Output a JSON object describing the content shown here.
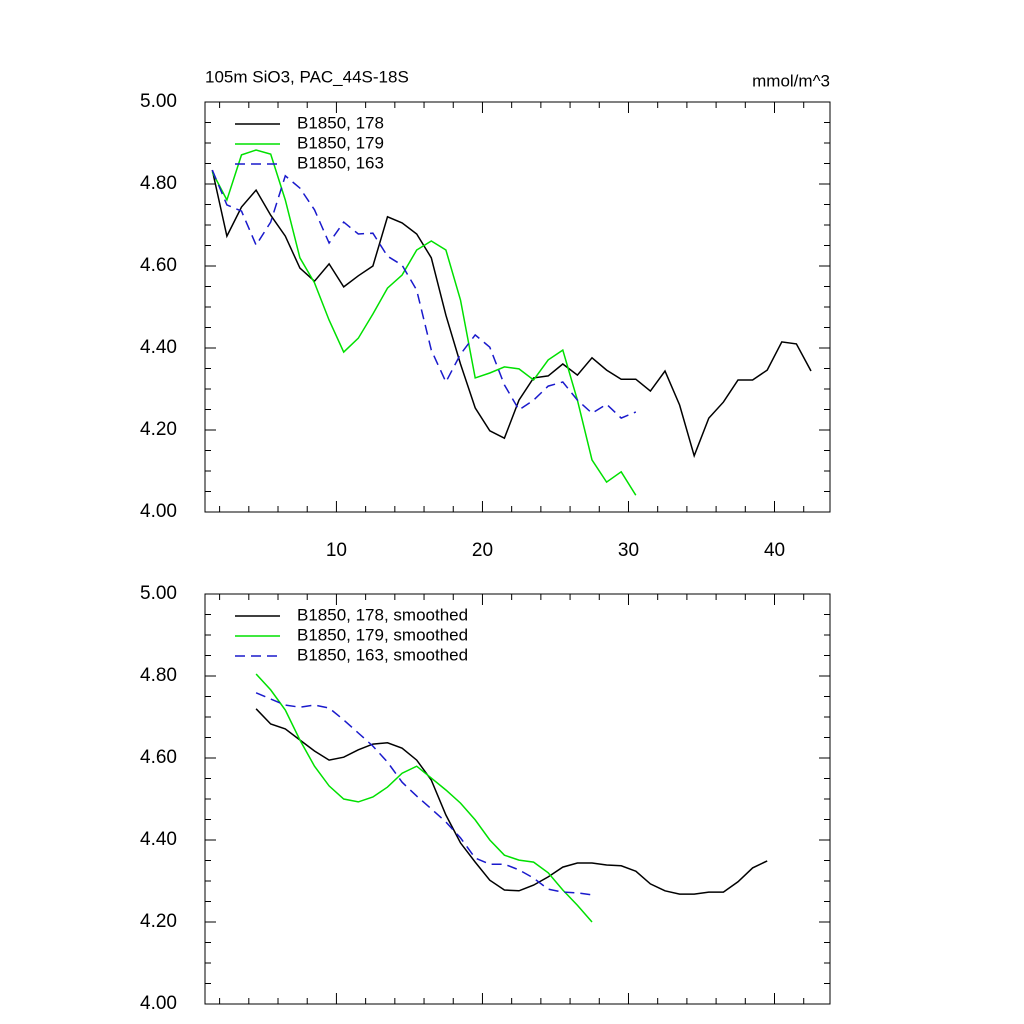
{
  "chart_data": [
    {
      "type": "line",
      "title": "105m SiO3, PAC_44S-18S",
      "units": "mmol/m^3",
      "x": [
        1.5,
        2.5,
        3.5,
        4.5,
        5.5,
        6.5,
        7.5,
        8.5,
        9.5,
        10.5,
        11.5,
        12.5,
        13.5,
        14.5,
        15.5,
        16.5,
        17.5,
        18.5,
        19.5,
        20.5,
        21.5,
        22.5,
        23.5,
        24.5,
        25.5,
        26.5,
        27.5,
        28.5,
        29.5,
        30.5,
        31.5,
        32.5,
        33.5,
        34.5,
        35.5,
        36.5,
        37.5,
        38.5,
        39.5,
        40.5,
        41.5,
        42.5
      ],
      "series": [
        {
          "name": "B1850, 178",
          "color": "#000000",
          "dash": false,
          "values": [
            4.834,
            4.673,
            4.744,
            4.785,
            4.724,
            4.673,
            4.595,
            4.563,
            4.605,
            4.549,
            4.576,
            4.6,
            4.72,
            4.705,
            4.678,
            4.62,
            4.48,
            4.361,
            4.254,
            4.198,
            4.18,
            4.273,
            4.327,
            4.332,
            4.361,
            4.334,
            4.376,
            4.346,
            4.324,
            4.324,
            4.295,
            4.344,
            4.261,
            4.137,
            4.229,
            4.268,
            4.322,
            4.322,
            4.346,
            4.415,
            4.41,
            4.344
          ]
        },
        {
          "name": "B1850, 179",
          "color": "#00e000",
          "dash": false,
          "values": [
            4.829,
            4.761,
            4.871,
            4.883,
            4.873,
            4.761,
            4.62,
            4.559,
            4.468,
            4.39,
            4.424,
            4.483,
            4.546,
            4.578,
            4.639,
            4.661,
            4.639,
            4.517,
            4.327,
            4.339,
            4.354,
            4.349,
            4.322,
            4.371,
            4.395,
            4.273,
            4.127,
            4.073,
            4.098,
            4.041,
            null,
            null,
            null,
            null,
            null,
            null,
            null,
            null,
            null,
            null,
            null,
            null
          ]
        },
        {
          "name": "B1850, 163",
          "color": "#1a1acc",
          "dash": true,
          "values": [
            4.834,
            4.749,
            4.734,
            4.651,
            4.707,
            4.82,
            4.79,
            4.737,
            4.656,
            4.707,
            4.678,
            4.68,
            4.624,
            4.602,
            4.541,
            4.395,
            4.317,
            4.385,
            4.432,
            4.402,
            4.31,
            4.249,
            4.273,
            4.307,
            4.317,
            4.273,
            4.241,
            4.263,
            4.229,
            4.244,
            null,
            null,
            null,
            null,
            null,
            null,
            null,
            null,
            null,
            null,
            null,
            null
          ]
        }
      ],
      "xlim": [
        1,
        43.8
      ],
      "xticks": [
        10,
        20,
        30,
        40
      ],
      "minor_xticks": [
        2,
        4,
        6,
        8,
        12,
        14,
        16,
        18,
        22,
        24,
        26,
        28,
        32,
        34,
        36,
        38,
        42
      ],
      "ylim": [
        4,
        5
      ],
      "yticks": [
        {
          "value": 4,
          "label": "4.00"
        },
        {
          "value": 4.2,
          "label": "4.20"
        },
        {
          "value": 4.4,
          "label": "4.40"
        },
        {
          "value": 4.6,
          "label": "4.60"
        },
        {
          "value": 4.8,
          "label": "4.80"
        },
        {
          "value": 5,
          "label": "5.00"
        }
      ],
      "minor_yticks": [
        4.05,
        4.1,
        4.15,
        4.25,
        4.3,
        4.35,
        4.45,
        4.5,
        4.55,
        4.65,
        4.7,
        4.75,
        4.85,
        4.9,
        4.95
      ]
    },
    {
      "type": "line",
      "x": [
        4.5,
        5.5,
        6.5,
        7.5,
        8.5,
        9.5,
        10.5,
        11.5,
        12.5,
        13.5,
        14.5,
        15.5,
        16.5,
        17.5,
        18.5,
        19.5,
        20.5,
        21.5,
        22.5,
        23.5,
        24.5,
        25.5,
        26.5,
        27.5,
        28.5,
        29.5,
        30.5,
        31.5,
        32.5,
        33.5,
        34.5,
        35.5,
        36.5,
        37.5,
        38.5,
        39.5
      ],
      "series": [
        {
          "name": "B1850, 178, smoothed",
          "color": "#000000",
          "dash": false,
          "values": [
            4.72,
            4.683,
            4.671,
            4.644,
            4.617,
            4.595,
            4.602,
            4.62,
            4.634,
            4.637,
            4.624,
            4.595,
            4.546,
            4.461,
            4.393,
            4.346,
            4.302,
            4.278,
            4.276,
            4.29,
            4.31,
            4.334,
            4.344,
            4.344,
            4.339,
            4.337,
            4.324,
            4.293,
            4.276,
            4.268,
            4.268,
            4.273,
            4.273,
            4.298,
            4.332,
            4.349
          ]
        },
        {
          "name": "B1850, 179, smoothed",
          "color": "#00e000",
          "dash": false,
          "values": [
            4.805,
            4.766,
            4.717,
            4.644,
            4.58,
            4.532,
            4.5,
            4.493,
            4.505,
            4.529,
            4.563,
            4.58,
            4.551,
            4.522,
            4.49,
            4.449,
            4.4,
            4.363,
            4.351,
            4.346,
            4.32,
            4.278,
            4.241,
            4.2,
            null,
            null,
            null,
            null,
            null,
            null,
            null,
            null,
            null,
            null,
            null,
            null
          ]
        },
        {
          "name": "B1850, 163, smoothed",
          "color": "#1a1acc",
          "dash": true,
          "values": [
            4.759,
            4.744,
            4.729,
            4.724,
            4.729,
            4.722,
            4.693,
            4.661,
            4.629,
            4.59,
            4.541,
            4.507,
            4.476,
            4.444,
            4.405,
            4.356,
            4.341,
            4.341,
            4.327,
            4.307,
            4.28,
            4.273,
            4.271,
            4.266,
            null,
            null,
            null,
            null,
            null,
            null,
            null,
            null,
            null,
            null,
            null,
            null
          ]
        }
      ],
      "xlim": [
        1,
        43.8
      ],
      "xticks": [
        10,
        20,
        30,
        40
      ],
      "minor_xticks": [
        2,
        4,
        6,
        8,
        12,
        14,
        16,
        18,
        22,
        24,
        26,
        28,
        32,
        34,
        36,
        38,
        42
      ],
      "ylim": [
        4,
        5
      ],
      "yticks": [
        {
          "value": 4,
          "label": "4.00"
        },
        {
          "value": 4.2,
          "label": "4.20"
        },
        {
          "value": 4.4,
          "label": "4.40"
        },
        {
          "value": 4.6,
          "label": "4.60"
        },
        {
          "value": 4.8,
          "label": "4.80"
        },
        {
          "value": 5,
          "label": "5.00"
        }
      ],
      "minor_yticks": [
        4.05,
        4.1,
        4.15,
        4.25,
        4.3,
        4.35,
        4.45,
        4.5,
        4.55,
        4.65,
        4.7,
        4.75,
        4.85,
        4.9,
        4.95
      ]
    }
  ]
}
